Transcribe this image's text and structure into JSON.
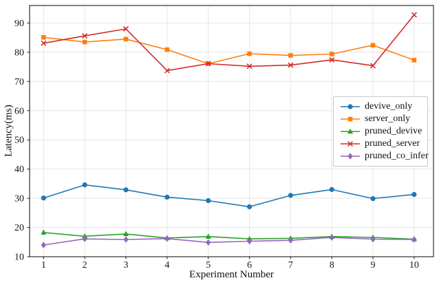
{
  "figure": {
    "background": "#ffffff",
    "grid_color": "#e6e6e6",
    "spine_color": "#1a1a1a"
  },
  "chart_data": {
    "type": "line",
    "title": "",
    "xlabel": "Experiment Number",
    "ylabel": "Latency(ms)",
    "x": [
      1,
      2,
      3,
      4,
      5,
      6,
      7,
      8,
      9,
      10
    ],
    "yticks": [
      10,
      20,
      30,
      40,
      50,
      60,
      70,
      80,
      90
    ],
    "xlim": [
      0.66,
      10.47
    ],
    "ylim": [
      10,
      96
    ],
    "grid": true,
    "legend_position": "center-right",
    "series": [
      {
        "name": "devive_only",
        "color": "#1f77b4",
        "marker": "circle",
        "values": [
          30.1,
          34.6,
          32.9,
          30.4,
          29.2,
          27.1,
          31.0,
          33.0,
          29.9,
          31.3
        ]
      },
      {
        "name": "server_only",
        "color": "#ff7f0e",
        "marker": "square",
        "values": [
          85.1,
          83.5,
          84.5,
          80.9,
          76.1,
          79.5,
          78.9,
          79.4,
          82.4,
          77.3
        ]
      },
      {
        "name": "pruned_devive",
        "color": "#2ca02c",
        "marker": "triangle",
        "values": [
          18.3,
          17.0,
          17.8,
          16.4,
          16.9,
          16.1,
          16.3,
          16.9,
          16.6,
          16.0
        ]
      },
      {
        "name": "pruned_server",
        "color": "#d62728",
        "marker": "x",
        "values": [
          83.1,
          85.6,
          88.0,
          73.7,
          76.1,
          75.2,
          75.6,
          77.4,
          75.4,
          92.8
        ]
      },
      {
        "name": "pruned_co_infer",
        "color": "#9467bd",
        "marker": "diamond",
        "values": [
          14.0,
          16.1,
          15.9,
          16.2,
          14.9,
          15.3,
          15.6,
          16.6,
          16.0,
          15.9
        ]
      }
    ]
  }
}
